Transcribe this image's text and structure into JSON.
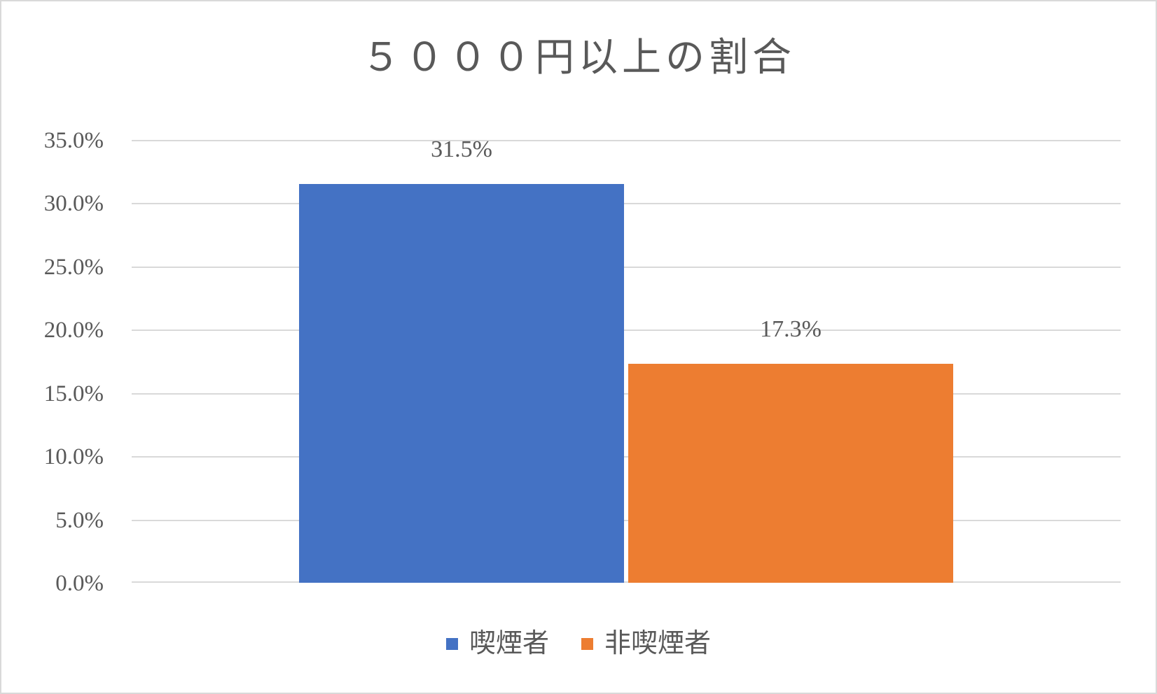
{
  "chart_data": {
    "type": "bar",
    "title": "５０００円以上の割合",
    "categories": [
      ""
    ],
    "series": [
      {
        "name": "喫煙者",
        "values": [
          31.5
        ],
        "data_labels": [
          "31.5%"
        ],
        "color": "#4472C4"
      },
      {
        "name": "非喫煙者",
        "values": [
          17.3
        ],
        "data_labels": [
          "17.3%"
        ],
        "color": "#ED7D31"
      }
    ],
    "xlabel": "",
    "ylabel": "",
    "ylim": [
      0,
      35
    ],
    "yticks": [
      {
        "value": 0,
        "label": "0.0%"
      },
      {
        "value": 5,
        "label": "5.0%"
      },
      {
        "value": 10,
        "label": "10.0%"
      },
      {
        "value": 15,
        "label": "15.0%"
      },
      {
        "value": 20,
        "label": "20.0%"
      },
      {
        "value": 25,
        "label": "25.0%"
      },
      {
        "value": 30,
        "label": "30.0%"
      },
      {
        "value": 35,
        "label": "35.0%"
      }
    ],
    "grid": true,
    "legend_position": "bottom",
    "legend": [
      "喫煙者",
      "非喫煙者"
    ]
  },
  "style": {
    "background": "#FFFFFF",
    "border_color": "#D9D9D9",
    "gridline_color": "#D9D9D9",
    "text_color": "#595959"
  }
}
